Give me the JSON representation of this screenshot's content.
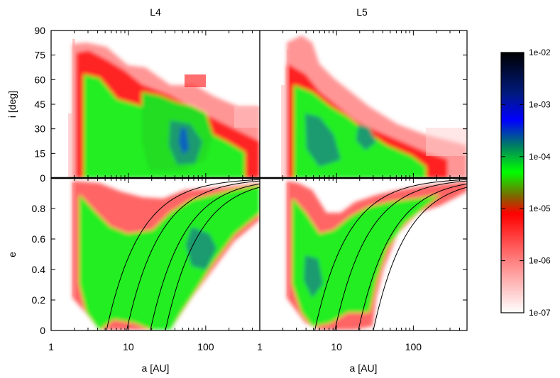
{
  "chart_data": [
    {
      "type": "heatmap",
      "title": "L4",
      "panel": "top-left",
      "xlabel": "",
      "ylabel": "i [deg]",
      "xscale": "log",
      "xlim": [
        1,
        500
      ],
      "ylim": [
        0,
        90
      ],
      "xticks": [
        "1",
        "10",
        "100"
      ],
      "yticks": [
        "0",
        "15",
        "30",
        "45",
        "60",
        "75",
        "90"
      ],
      "description": "density of captured objects in semimajor axis vs inclination"
    },
    {
      "type": "heatmap",
      "title": "L5",
      "panel": "top-right",
      "xlabel": "",
      "ylabel": "",
      "xscale": "log",
      "xlim": [
        1,
        500
      ],
      "ylim": [
        0,
        90
      ],
      "xticks": [
        "1",
        "10",
        "100"
      ],
      "yticks": []
    },
    {
      "type": "heatmap",
      "title": "",
      "panel": "bottom-left",
      "xlabel": "a [AU]",
      "ylabel": "e",
      "xscale": "log",
      "xlim": [
        1,
        500
      ],
      "ylim": [
        0,
        1
      ],
      "xticks": [
        "1",
        "10",
        "100"
      ],
      "yticks": [
        "0",
        "0.2",
        "0.4",
        "0.6",
        "0.8"
      ],
      "curves_perihelion_AU": [
        5.2,
        9.5,
        19.2,
        30.1
      ]
    },
    {
      "type": "heatmap",
      "title": "",
      "panel": "bottom-right",
      "xlabel": "a [AU]",
      "ylabel": "",
      "xscale": "log",
      "xlim": [
        1,
        500
      ],
      "ylim": [
        0,
        1
      ],
      "xticks": [
        "1",
        "10",
        "100"
      ],
      "yticks": [],
      "curves_perihelion_AU": [
        5.2,
        9.5,
        19.2,
        30.1
      ]
    }
  ],
  "colorbar": {
    "ticks": [
      "1e-02",
      "1e-03",
      "1e-04",
      "1e-05",
      "1e-06",
      "1e-07"
    ],
    "stops": [
      "#000000",
      "#0000ff",
      "#00ff00",
      "#ff0000",
      "#ffffff"
    ]
  }
}
